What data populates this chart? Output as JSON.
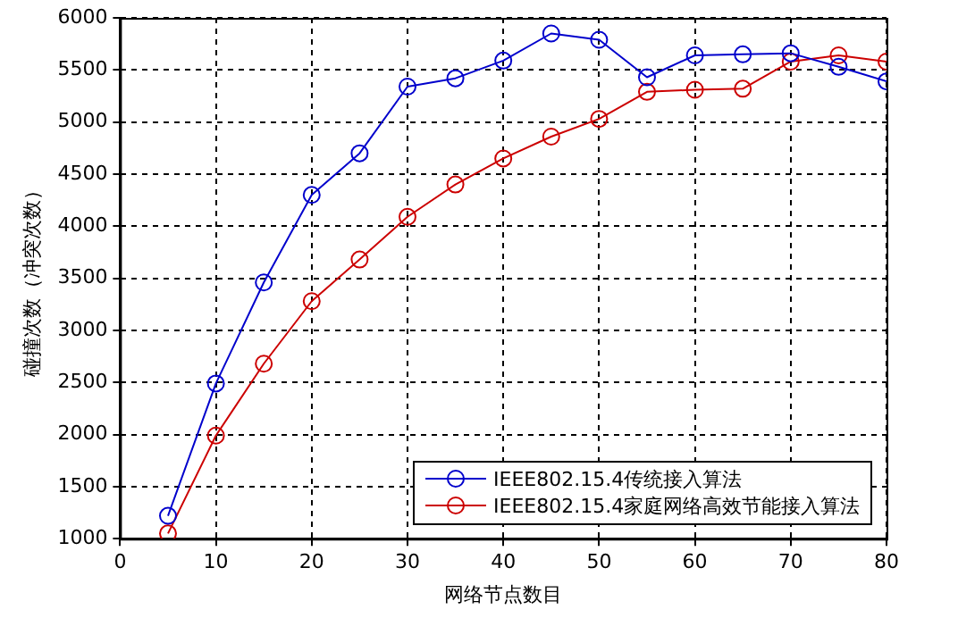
{
  "chart_data": {
    "type": "line",
    "xlabel": "网络节点数目",
    "ylabel": "碰撞次数（冲突次数）",
    "x": [
      5,
      10,
      15,
      20,
      25,
      30,
      35,
      40,
      45,
      50,
      55,
      60,
      65,
      70,
      75,
      80
    ],
    "series": [
      {
        "name": "IEEE802.15.4传统接入算法",
        "color": "#0000cc",
        "values": [
          1220,
          2490,
          3460,
          4300,
          4700,
          5340,
          5420,
          5590,
          5850,
          5790,
          5430,
          5640,
          5650,
          5660,
          5530,
          5390
        ]
      },
      {
        "name": "IEEE802.15.4家庭网络高效节能接入算法",
        "color": "#cc0000",
        "values": [
          1050,
          1990,
          2680,
          3280,
          3680,
          4090,
          4400,
          4650,
          4860,
          5030,
          5290,
          5310,
          5320,
          5580,
          5640,
          5580
        ]
      }
    ],
    "xlim": [
      0,
      80
    ],
    "xticks": [
      0,
      10,
      20,
      30,
      40,
      50,
      60,
      70,
      80
    ],
    "ylim": [
      1000,
      6000
    ],
    "yticks": [
      1000,
      1500,
      2000,
      2500,
      3000,
      3500,
      4000,
      4500,
      5000,
      5500,
      6000
    ],
    "grid": true,
    "legend": "bottom right",
    "marker": "circle",
    "line_style": "solid"
  }
}
